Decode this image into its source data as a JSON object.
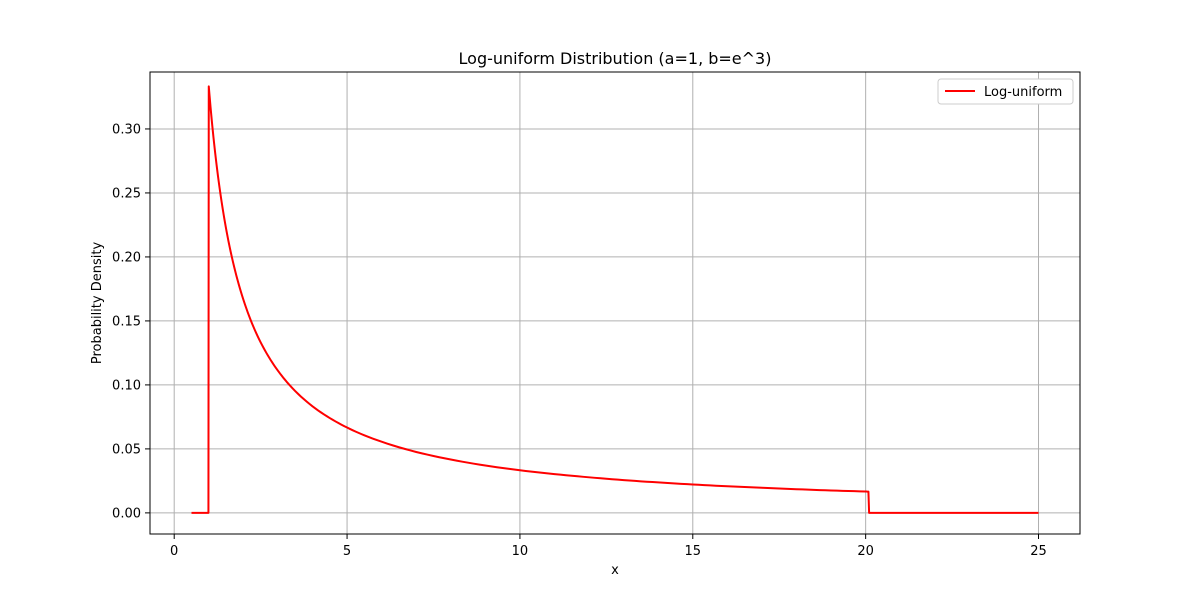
{
  "chart_data": {
    "type": "line",
    "title": "Log-uniform Distribution (a=1, b=e^3)",
    "xlabel": "x",
    "ylabel": "Probability Density",
    "xlim": [
      -0.7,
      26.2
    ],
    "ylim": [
      -0.0165,
      0.3445
    ],
    "xticks": [
      0,
      5,
      10,
      15,
      20,
      25
    ],
    "xtick_labels": [
      "0",
      "5",
      "10",
      "15",
      "20",
      "25"
    ],
    "yticks": [
      0.0,
      0.05,
      0.1,
      0.15,
      0.2,
      0.25,
      0.3
    ],
    "ytick_labels": [
      "0.00",
      "0.05",
      "0.10",
      "0.15",
      "0.20",
      "0.25",
      "0.30"
    ],
    "grid": true,
    "legend_position": "top-right",
    "series": [
      {
        "name": "Log-uniform",
        "color": "#ff0000",
        "x": [
          0.5,
          0.99,
          1.0,
          1.1,
          1.2,
          1.3,
          1.4,
          1.5,
          1.6,
          1.8,
          2.0,
          2.25,
          2.5,
          2.75,
          3.0,
          3.5,
          4.0,
          4.5,
          5.0,
          5.5,
          6.0,
          7.0,
          8.0,
          9.0,
          10.0,
          11.0,
          12.0,
          13.0,
          14.0,
          15.0,
          16.0,
          17.0,
          18.0,
          19.0,
          20.0,
          20.08,
          20.1,
          25.0
        ],
        "y": [
          0.0,
          0.0,
          0.3333,
          0.303,
          0.2778,
          0.2564,
          0.2381,
          0.2222,
          0.2083,
          0.1852,
          0.1667,
          0.1481,
          0.1333,
          0.1212,
          0.1111,
          0.0952,
          0.0833,
          0.0741,
          0.0667,
          0.0606,
          0.0556,
          0.0476,
          0.0417,
          0.037,
          0.0333,
          0.0303,
          0.0278,
          0.0256,
          0.0238,
          0.0222,
          0.0208,
          0.0196,
          0.0185,
          0.0175,
          0.0167,
          0.0166,
          0.0,
          0.0
        ]
      }
    ]
  }
}
